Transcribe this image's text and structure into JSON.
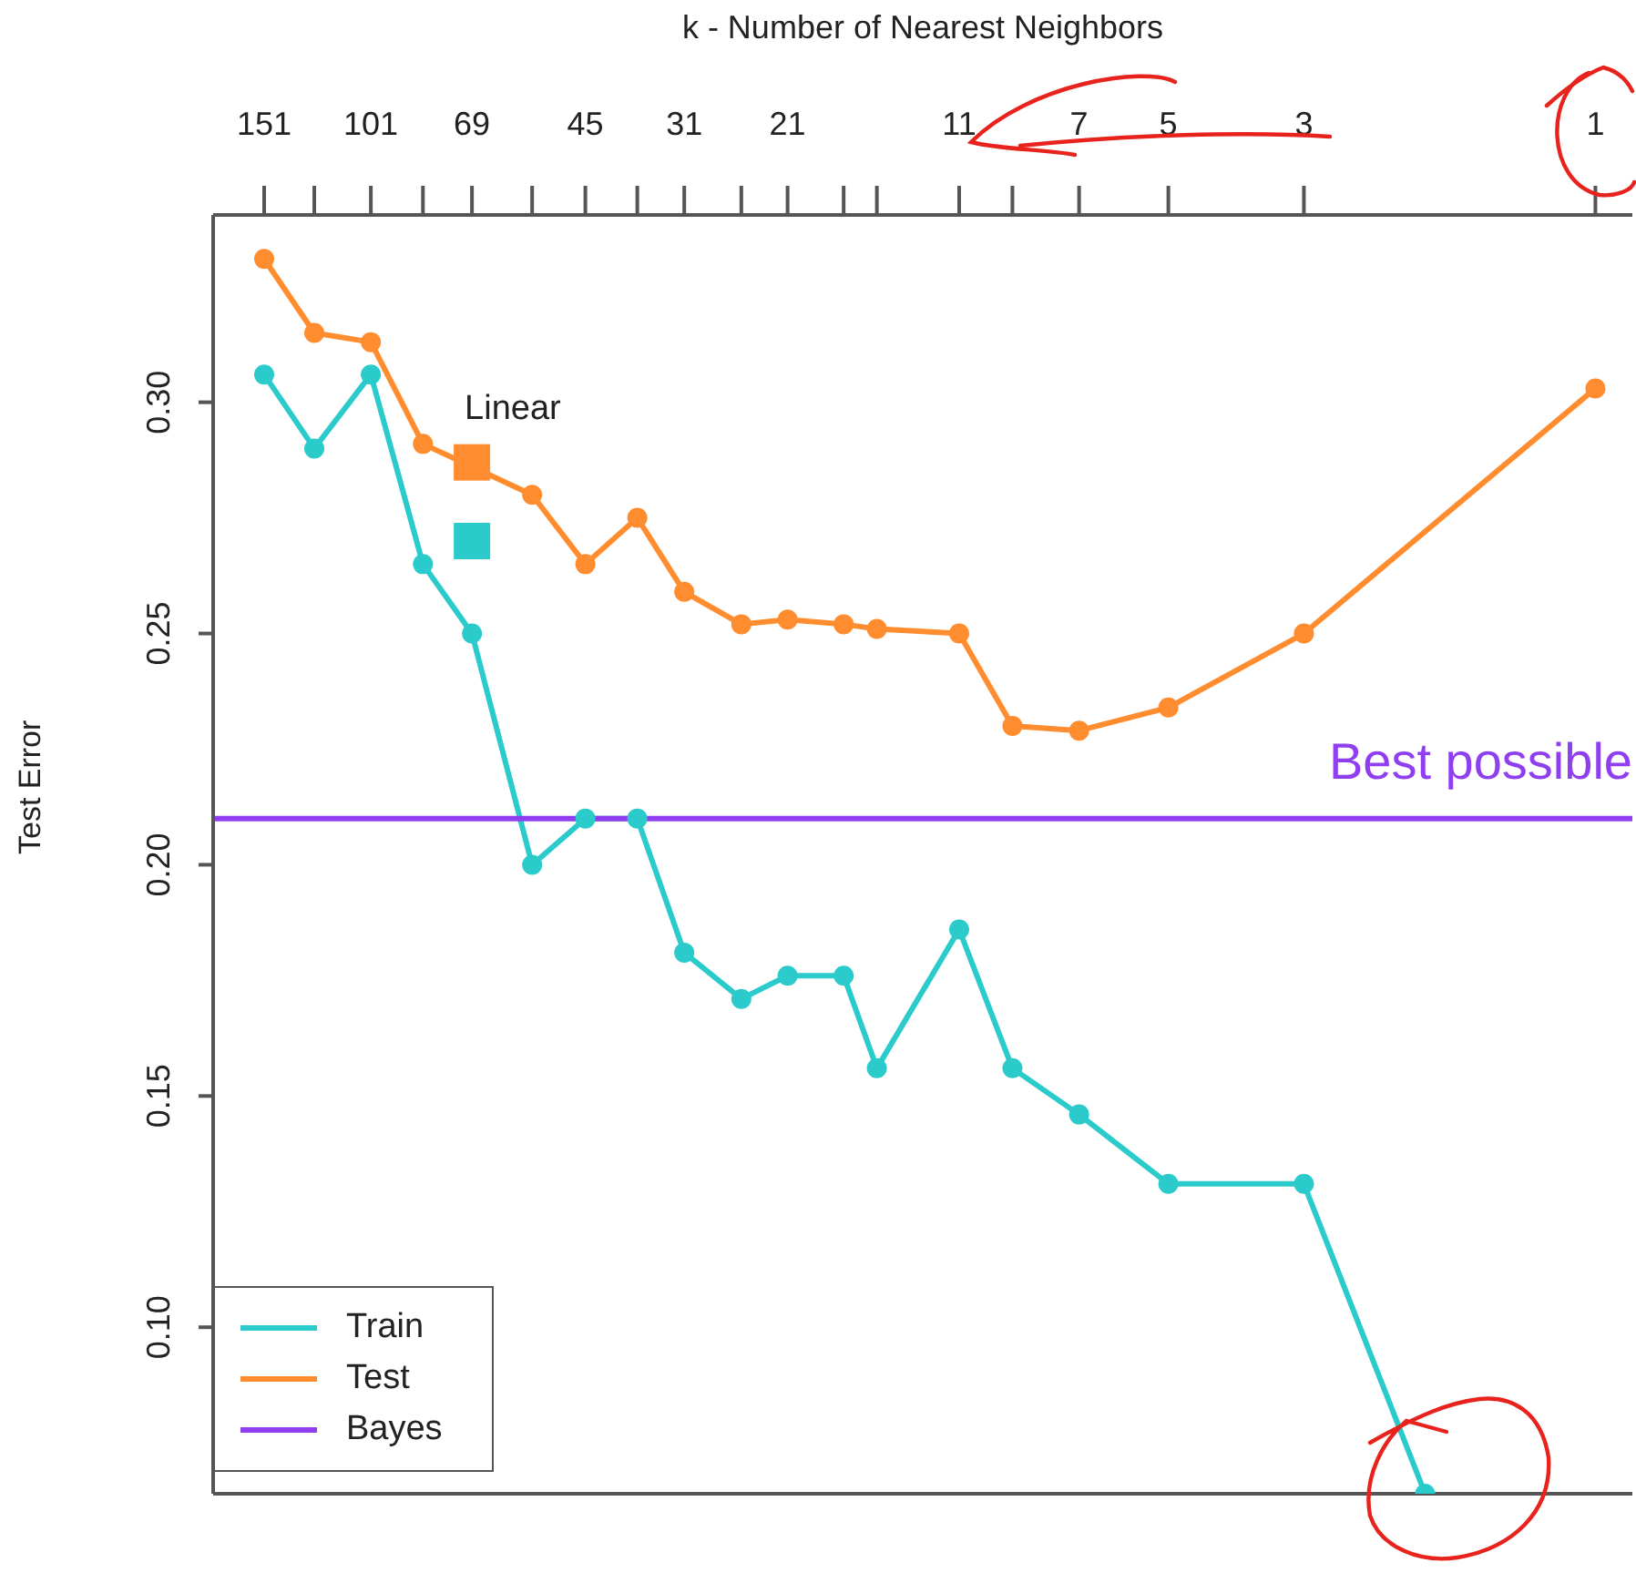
{
  "chart_data": {
    "type": "line",
    "xlabel": "k -  Number of Nearest Neighbors",
    "ylabel": "Test Error",
    "log": "x",
    "xlim": [
      183,
      0.87
    ],
    "xticks": [
      151,
      {
        "value": 125,
        "label": null
      },
      101,
      {
        "value": 83,
        "label": null
      },
      69,
      {
        "value": 55,
        "label": null
      },
      45,
      {
        "value": 37,
        "label": null
      },
      31,
      {
        "value": 25,
        "label": null
      },
      21,
      {
        "value": 17,
        "label": null
      },
      {
        "value": 15,
        "label": null
      },
      11,
      {
        "value": 9,
        "label": null
      },
      7,
      5,
      3,
      1
    ],
    "ylim": [
      0.064,
      0.3405
    ],
    "yticks": [
      {
        "value": 0.1,
        "label": "0.10"
      },
      {
        "value": 0.15,
        "label": "0.15"
      },
      {
        "value": 0.2,
        "label": "0.20"
      },
      {
        "value": 0.25,
        "label": "0.25"
      },
      {
        "value": 0.3,
        "label": "0.30"
      }
    ],
    "grid": false,
    "legend": "bottom left",
    "marker": "circle",
    "line_style": "solid",
    "annotations": [
      {
        "text": "Linear",
        "x": 69,
        "y": 0.287
      },
      {
        "text": "Best possible",
        "x": 0.87,
        "y": 0.21
      }
    ],
    "series": [
      {
        "name": "Train",
        "color": "#2ccbcb",
        "x": [
          151,
          125,
          101,
          83,
          69,
          55,
          45,
          37,
          31,
          25,
          21,
          17,
          15,
          11,
          9,
          7,
          5,
          3,
          1.9
        ],
        "values": [
          0.306,
          0.29,
          0.306,
          0.265,
          0.25,
          0.2,
          0.21,
          0.21,
          0.181,
          0.171,
          0.176,
          0.176,
          0.156,
          0.186,
          0.156,
          0.146,
          0.131,
          0.131,
          0.064
        ]
      },
      {
        "name": "Test",
        "color": "#ff8c2e",
        "x": [
          151,
          125,
          101,
          83,
          55,
          45,
          37,
          31,
          25,
          21,
          17,
          15,
          11,
          9,
          7,
          5,
          3,
          1
        ],
        "values": [
          0.331,
          0.315,
          0.313,
          0.291,
          0.28,
          0.265,
          0.275,
          0.259,
          0.252,
          0.253,
          0.252,
          0.251,
          0.25,
          0.23,
          0.229,
          0.234,
          0.25,
          0.303
        ]
      },
      {
        "name": "Bayes",
        "color": "#8f3ff0",
        "marker": "none",
        "x": [
          183,
          0.87
        ],
        "values": [
          0.21,
          0.21
        ]
      },
      {
        "type": "scatter",
        "marker": "square",
        "color": "#ff8c2e",
        "x": [
          69
        ],
        "values": [
          0.287
        ]
      },
      {
        "type": "scatter",
        "marker": "square",
        "color": "#2ccbcb",
        "x": [
          69
        ],
        "values": [
          0.27
        ]
      }
    ]
  }
}
